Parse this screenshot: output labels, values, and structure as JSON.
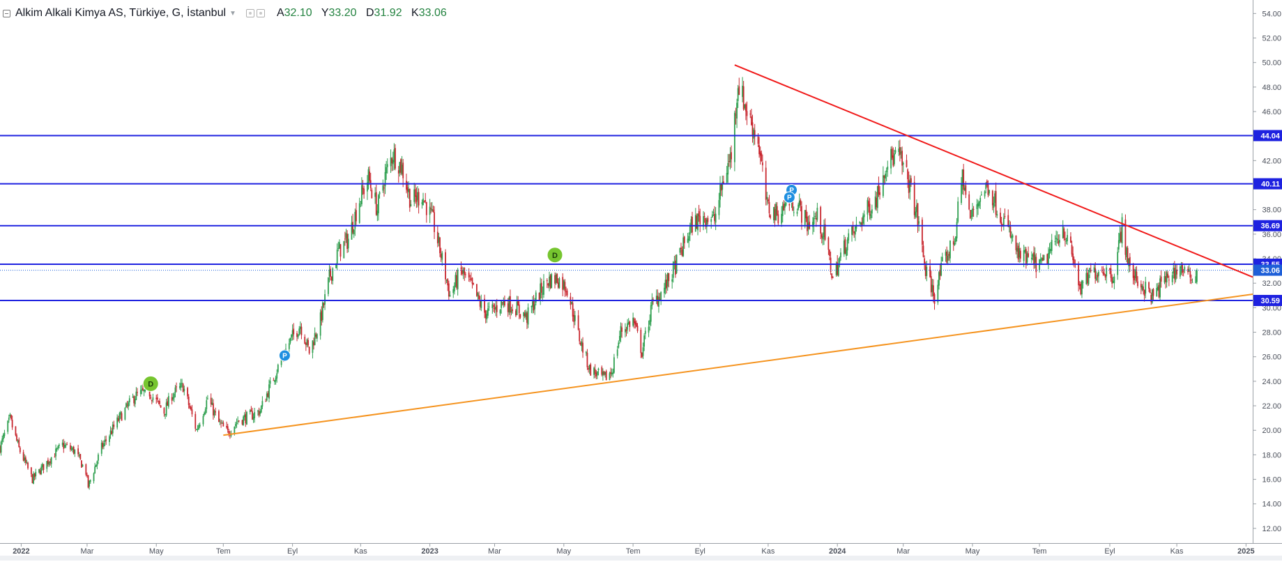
{
  "legend": {
    "symbol": "Alkim Alkali Kimya AS, Türkiye, G, İstanbul",
    "o_label": "A",
    "o_value": "32.10",
    "h_label": "Y",
    "h_value": "33.20",
    "l_label": "D",
    "l_value": "31.92",
    "c_label": "K",
    "c_value": "33.06"
  },
  "colors": {
    "up": "#2e9f4f",
    "down": "#c8262e",
    "hline": "#1e22e0",
    "resistance": "#f01818",
    "support": "#f5931e",
    "last_price": "#1e5fd8",
    "badge_d": "#76c52f",
    "badge_p": "#1e8fe0"
  },
  "chart_data": {
    "type": "candlestick",
    "title": "Alkim Alkali Kimya AS, Türkiye, G, İstanbul",
    "interval": "daily",
    "x_range": [
      "2021-12-13",
      "2025-01-08"
    ],
    "y_range": [
      10.8,
      55.1
    ],
    "y_ticks": [
      "54.00",
      "52.00",
      "50.00",
      "48.00",
      "46.00",
      "44.00",
      "42.00",
      "40.00",
      "38.00",
      "36.00",
      "34.00",
      "32.00",
      "30.00",
      "28.00",
      "26.00",
      "24.00",
      "22.00",
      "20.00",
      "18.00",
      "16.00",
      "14.00",
      "12.00"
    ],
    "x_ticks": [
      {
        "date": "2022-01-01",
        "label": "2022",
        "bold": true
      },
      {
        "date": "2022-03-01",
        "label": "Mar"
      },
      {
        "date": "2022-05-02",
        "label": "May"
      },
      {
        "date": "2022-07-01",
        "label": "Tem"
      },
      {
        "date": "2022-09-01",
        "label": "Eyl"
      },
      {
        "date": "2022-11-01",
        "label": "Kas"
      },
      {
        "date": "2023-01-02",
        "label": "2023",
        "bold": true
      },
      {
        "date": "2023-03-01",
        "label": "Mar"
      },
      {
        "date": "2023-05-02",
        "label": "May"
      },
      {
        "date": "2023-07-03",
        "label": "Tem"
      },
      {
        "date": "2023-09-01",
        "label": "Eyl"
      },
      {
        "date": "2023-11-01",
        "label": "Kas"
      },
      {
        "date": "2024-01-02",
        "label": "2024",
        "bold": true
      },
      {
        "date": "2024-03-01",
        "label": "Mar"
      },
      {
        "date": "2024-05-02",
        "label": "May"
      },
      {
        "date": "2024-07-01",
        "label": "Tem"
      },
      {
        "date": "2024-09-02",
        "label": "Eyl"
      },
      {
        "date": "2024-11-01",
        "label": "Kas"
      },
      {
        "date": "2025-01-02",
        "label": "2025",
        "bold": true
      }
    ],
    "price_anchors": [
      [
        "2021-12-13",
        18.6
      ],
      [
        "2021-12-22",
        20.9
      ],
      [
        "2021-12-30",
        18.5
      ],
      [
        "2022-01-11",
        16.0
      ],
      [
        "2022-01-26",
        17.6
      ],
      [
        "2022-02-07",
        18.8
      ],
      [
        "2022-02-18",
        18.3
      ],
      [
        "2022-02-28",
        16.6
      ],
      [
        "2022-03-02",
        15.4
      ],
      [
        "2022-03-14",
        18.6
      ],
      [
        "2022-03-30",
        21.0
      ],
      [
        "2022-04-13",
        22.8
      ],
      [
        "2022-04-25",
        23.2
      ],
      [
        "2022-05-09",
        21.5
      ],
      [
        "2022-05-16",
        22.9
      ],
      [
        "2022-05-26",
        23.6
      ],
      [
        "2022-06-07",
        20.0
      ],
      [
        "2022-06-17",
        22.6
      ],
      [
        "2022-06-27",
        20.6
      ],
      [
        "2022-07-05",
        19.8
      ],
      [
        "2022-07-14",
        20.8
      ],
      [
        "2022-07-26",
        21.2
      ],
      [
        "2022-08-03",
        21.6
      ],
      [
        "2022-08-15",
        24.3
      ],
      [
        "2022-08-23",
        26.0
      ],
      [
        "2022-08-31",
        27.5
      ],
      [
        "2022-09-08",
        28.6
      ],
      [
        "2022-09-16",
        26.4
      ],
      [
        "2022-09-26",
        29.0
      ],
      [
        "2022-10-04",
        32.4
      ],
      [
        "2022-10-12",
        34.6
      ],
      [
        "2022-10-21",
        35.6
      ],
      [
        "2022-10-31",
        38.8
      ],
      [
        "2022-11-08",
        40.6
      ],
      [
        "2022-11-16",
        38.0
      ],
      [
        "2022-11-22",
        40.5
      ],
      [
        "2022-11-30",
        42.6
      ],
      [
        "2022-12-08",
        41.4
      ],
      [
        "2022-12-16",
        38.7
      ],
      [
        "2022-12-26",
        39.2
      ],
      [
        "2023-01-05",
        37.0
      ],
      [
        "2023-01-13",
        33.9
      ],
      [
        "2023-01-20",
        31.0
      ],
      [
        "2023-01-30",
        33.0
      ],
      [
        "2023-02-09",
        31.6
      ],
      [
        "2023-02-20",
        29.6
      ],
      [
        "2023-02-28",
        29.8
      ],
      [
        "2023-03-09",
        30.5
      ],
      [
        "2023-03-20",
        30.0
      ],
      [
        "2023-03-30",
        29.2
      ],
      [
        "2023-04-07",
        30.7
      ],
      [
        "2023-04-17",
        32.2
      ],
      [
        "2023-04-26",
        32.4
      ],
      [
        "2023-05-05",
        31.6
      ],
      [
        "2023-05-15",
        27.8
      ],
      [
        "2023-05-25",
        25.0
      ],
      [
        "2023-06-07",
        24.2
      ],
      [
        "2023-06-14",
        24.8
      ],
      [
        "2023-06-22",
        28.1
      ],
      [
        "2023-07-03",
        29.0
      ],
      [
        "2023-07-11",
        26.4
      ],
      [
        "2023-07-20",
        30.2
      ],
      [
        "2023-07-31",
        31.6
      ],
      [
        "2023-08-09",
        33.2
      ],
      [
        "2023-08-17",
        35.0
      ],
      [
        "2023-08-25",
        36.8
      ],
      [
        "2023-09-04",
        37.5
      ],
      [
        "2023-09-14",
        37.2
      ],
      [
        "2023-09-22",
        40.5
      ],
      [
        "2023-09-29",
        42.5
      ],
      [
        "2023-10-05",
        48.4
      ],
      [
        "2023-10-13",
        46.0
      ],
      [
        "2023-10-23",
        43.6
      ],
      [
        "2023-10-31",
        38.2
      ],
      [
        "2023-11-09",
        37.6
      ],
      [
        "2023-11-20",
        38.7
      ],
      [
        "2023-11-27",
        38.5
      ],
      [
        "2023-12-06",
        36.8
      ],
      [
        "2023-12-15",
        37.4
      ],
      [
        "2023-12-22",
        35.6
      ],
      [
        "2023-12-29",
        32.4
      ],
      [
        "2024-01-10",
        35.4
      ],
      [
        "2024-01-19",
        36.4
      ],
      [
        "2024-01-26",
        37.6
      ],
      [
        "2024-02-06",
        39.0
      ],
      [
        "2024-02-15",
        42.0
      ],
      [
        "2024-02-26",
        42.4
      ],
      [
        "2024-03-06",
        40.2
      ],
      [
        "2024-03-14",
        37.2
      ],
      [
        "2024-03-21",
        33.0
      ],
      [
        "2024-03-29",
        31.0
      ],
      [
        "2024-04-05",
        33.4
      ],
      [
        "2024-04-16",
        35.6
      ],
      [
        "2024-04-23",
        40.8
      ],
      [
        "2024-04-30",
        37.2
      ],
      [
        "2024-05-09",
        39.2
      ],
      [
        "2024-05-16",
        40.0
      ],
      [
        "2024-05-24",
        38.2
      ],
      [
        "2024-06-03",
        36.4
      ],
      [
        "2024-06-12",
        34.2
      ],
      [
        "2024-06-24",
        33.8
      ],
      [
        "2024-07-03",
        33.4
      ],
      [
        "2024-07-12",
        34.8
      ],
      [
        "2024-07-22",
        36.6
      ],
      [
        "2024-07-31",
        34.0
      ],
      [
        "2024-08-07",
        31.4
      ],
      [
        "2024-08-16",
        32.8
      ],
      [
        "2024-08-27",
        33.2
      ],
      [
        "2024-09-05",
        32.6
      ],
      [
        "2024-09-13",
        36.6
      ],
      [
        "2024-09-20",
        33.0
      ],
      [
        "2024-10-01",
        31.8
      ],
      [
        "2024-10-11",
        30.8
      ],
      [
        "2024-10-18",
        31.9
      ],
      [
        "2024-10-25",
        32.6
      ],
      [
        "2024-11-05",
        33.3
      ],
      [
        "2024-11-12",
        32.4
      ],
      [
        "2024-11-19",
        33.06
      ]
    ],
    "horizontal_levels": [
      {
        "value": 44.04,
        "label": "44.04"
      },
      {
        "value": 40.11,
        "label": "40.11"
      },
      {
        "value": 36.69,
        "label": "36.69"
      },
      {
        "value": 33.55,
        "label": "33.55"
      },
      {
        "value": 30.59,
        "label": "30.59"
      }
    ],
    "last_price": {
      "value": 33.06,
      "label": "33.06"
    },
    "trendlines": [
      {
        "name": "resistance",
        "from": [
          "2023-10-02",
          49.8
        ],
        "to": [
          "2025-01-08",
          32.5
        ]
      },
      {
        "name": "support",
        "from": [
          "2022-07-01",
          19.6
        ],
        "to": [
          "2025-01-08",
          31.1
        ]
      }
    ],
    "markers": [
      {
        "type": "D",
        "date": "2022-04-27",
        "price": 23.8
      },
      {
        "type": "P",
        "date": "2022-08-25",
        "price": 26.1
      },
      {
        "type": "D",
        "date": "2023-04-24",
        "price": 34.3
      },
      {
        "type": "P",
        "date": "2023-11-22",
        "price": 39.6
      },
      {
        "type": "P",
        "date": "2023-11-20",
        "price": 39.0
      }
    ]
  }
}
